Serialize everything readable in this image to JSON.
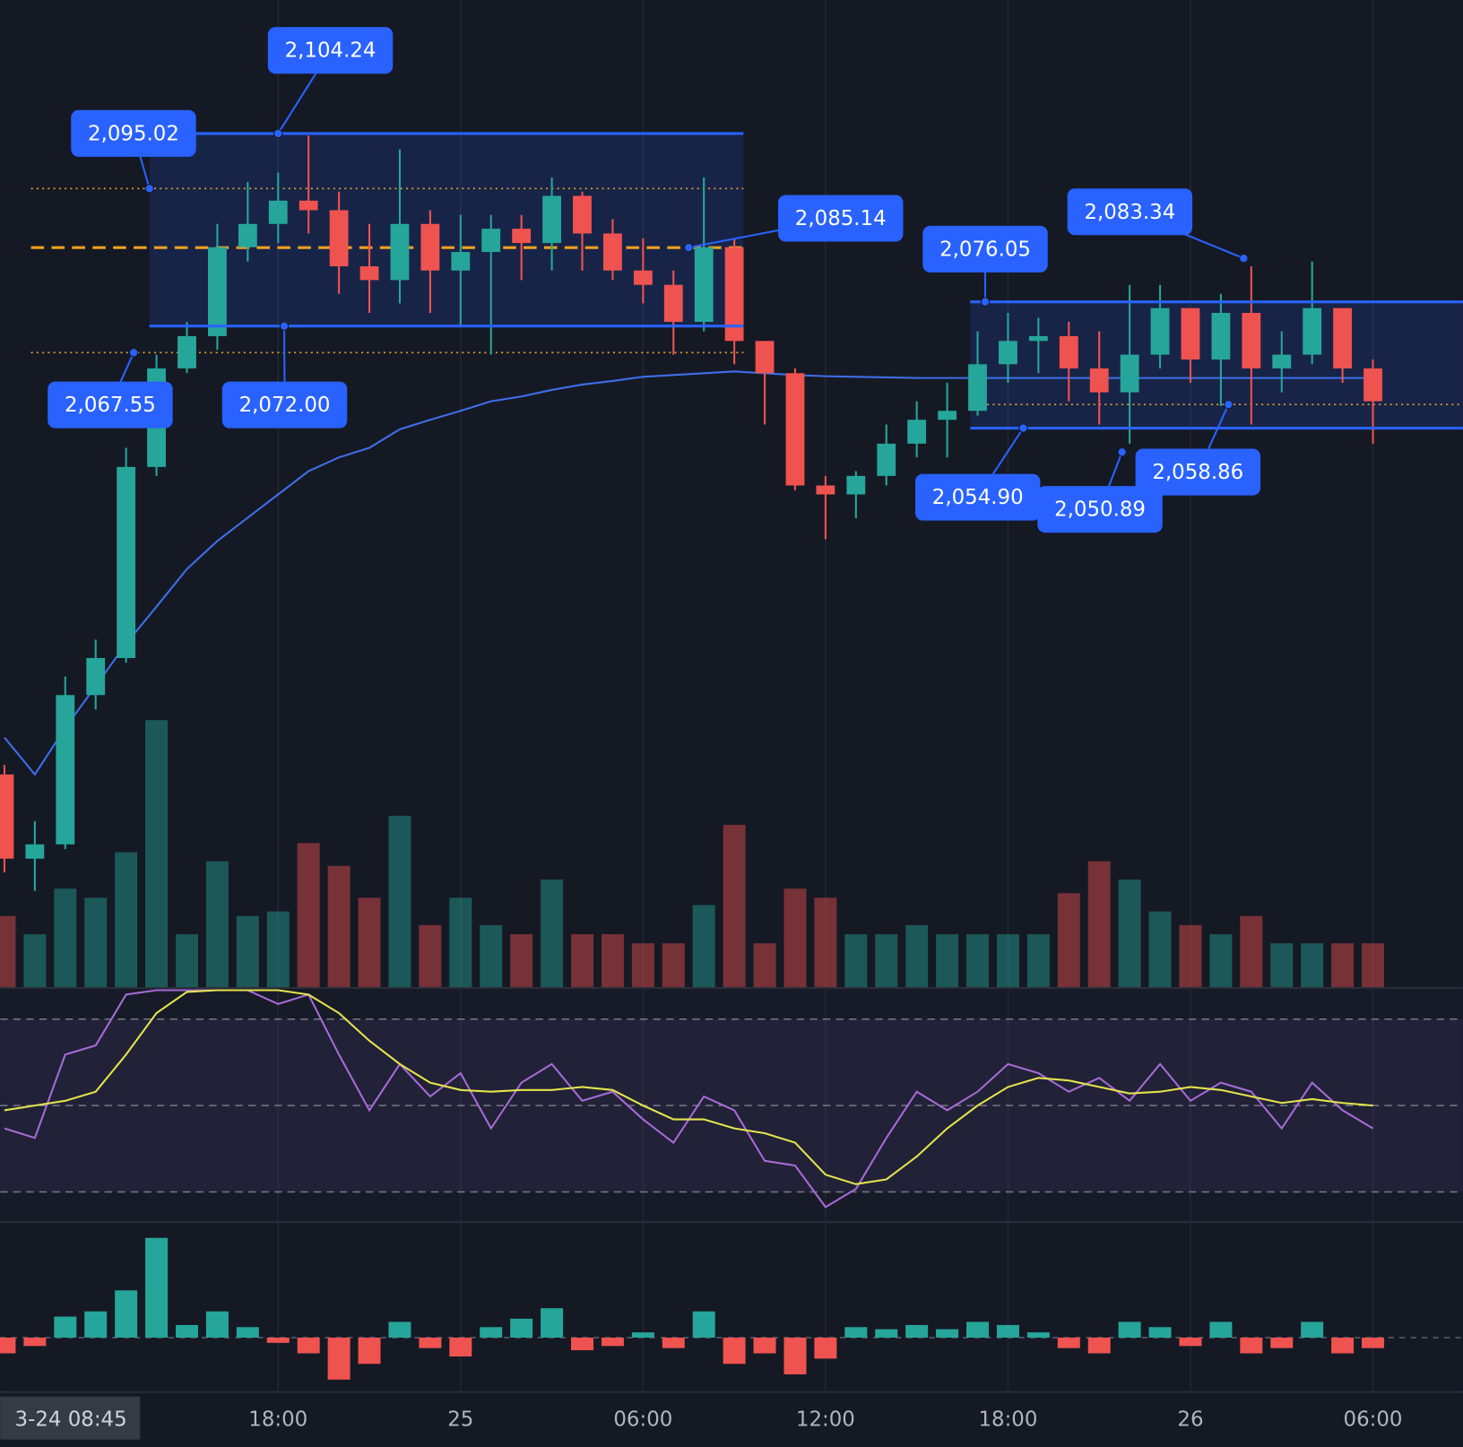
{
  "chart_data": [
    {
      "type": "bar",
      "color_by": "candle",
      "up_color": "rgba(38,166,154,0.45)",
      "down_color": "rgba(239,83,80,0.45)",
      "values": [
        78,
        58,
        108,
        98,
        148,
        293,
        58,
        138,
        78,
        83,
        158,
        133,
        98,
        188,
        68,
        98,
        68,
        58,
        118,
        58,
        58,
        48,
        48,
        90,
        178,
        48,
        108,
        98,
        58,
        58,
        68,
        58,
        58,
        58,
        58,
        103,
        138,
        118,
        83,
        68,
        58,
        78,
        48,
        48,
        48,
        48
      ],
      "ylim": [
        0,
        300
      ]
    },
    {
      "type": "candlestick",
      "up_color": "#26a69a",
      "down_color": "#ef5350",
      "categories": [
        null,
        null,
        null,
        null,
        null,
        null,
        null,
        null,
        null,
        "18:00",
        null,
        null,
        null,
        null,
        null,
        "25",
        null,
        null,
        null,
        null,
        null,
        "06:00",
        null,
        null,
        null,
        null,
        null,
        "12:00",
        null,
        null,
        null,
        null,
        null,
        "18:00",
        null,
        null,
        null,
        null,
        null,
        "26",
        null,
        null,
        null,
        null,
        null,
        "06:00"
      ],
      "open": [
        1996.9,
        1982.8,
        1985.2,
        2010.2,
        2016.4,
        2048.4,
        2064.9,
        2070.3,
        2085.2,
        2089.1,
        2093.0,
        2091.4,
        2082.0,
        2079.7,
        2089.1,
        2081.3,
        2084.4,
        2088.3,
        2085.9,
        2093.8,
        2087.5,
        2081.3,
        2078.9,
        2072.7,
        2085.2,
        2069.5,
        2064.1,
        2045.3,
        2043.8,
        2046.9,
        2052.3,
        2056.3,
        2057.8,
        2065.6,
        2069.5,
        2070.3,
        2064.9,
        2060.9,
        2067.2,
        2075.0,
        2066.4,
        2074.2,
        2064.9,
        2067.2,
        2075.0,
        2064.9
      ],
      "high": [
        1998.5,
        1989.1,
        2013.3,
        2019.5,
        2051.6,
        2067.2,
        2072.7,
        2089.1,
        2096.1,
        2097.7,
        2103.9,
        2094.5,
        2089.1,
        2101.6,
        2091.4,
        2090.6,
        2090.6,
        2090.6,
        2096.9,
        2094.5,
        2089.9,
        2086.7,
        2081.3,
        2096.9,
        2086.7,
        2069.5,
        2064.9,
        2046.9,
        2047.7,
        2055.5,
        2059.4,
        2062.5,
        2071.1,
        2074.2,
        2073.4,
        2072.7,
        2071.1,
        2078.9,
        2078.9,
        2075.0,
        2077.4,
        2082.0,
        2071.1,
        2082.8,
        2075.0,
        2066.4
      ],
      "low": [
        1980.5,
        1977.4,
        1984.4,
        2007.8,
        2015.6,
        2046.9,
        2064.1,
        2068.0,
        2082.8,
        2085.9,
        2087.5,
        2077.4,
        2074.2,
        2075.8,
        2074.2,
        2071.9,
        2067.2,
        2079.7,
        2081.3,
        2081.3,
        2079.7,
        2075.8,
        2067.2,
        2071.1,
        2065.6,
        2055.5,
        2044.5,
        2036.3,
        2039.8,
        2045.3,
        2050.0,
        2050.0,
        2057.0,
        2062.5,
        2064.1,
        2059.4,
        2055.5,
        2052.3,
        2064.9,
        2062.5,
        2058.6,
        2055.5,
        2060.9,
        2065.6,
        2062.5,
        2052.3
      ],
      "close": [
        1982.8,
        1985.2,
        2010.2,
        2016.4,
        2048.4,
        2064.9,
        2070.3,
        2085.2,
        2089.1,
        2093.0,
        2091.4,
        2082.0,
        2079.7,
        2089.1,
        2081.3,
        2084.4,
        2088.3,
        2085.9,
        2093.8,
        2087.5,
        2081.3,
        2078.9,
        2072.7,
        2085.2,
        2069.5,
        2064.1,
        2045.3,
        2043.8,
        2046.9,
        2052.3,
        2056.3,
        2057.8,
        2065.6,
        2069.5,
        2070.3,
        2064.9,
        2060.9,
        2067.2,
        2075.0,
        2066.4,
        2074.2,
        2064.9,
        2067.2,
        2075.0,
        2064.9,
        2059.4
      ],
      "vwap": [
        2003.1,
        1996.9,
        2004.7,
        2011.7,
        2018.8,
        2025.0,
        2031.3,
        2036.0,
        2039.9,
        2043.8,
        2047.7,
        2050.0,
        2051.6,
        2054.7,
        2056.3,
        2057.8,
        2059.4,
        2060.2,
        2061.3,
        2062.2,
        2062.8,
        2063.5,
        2063.8,
        2064.1,
        2064.4,
        2064.1,
        2063.8,
        2063.6,
        2063.5,
        2063.4,
        2063.3,
        2063.3,
        2063.3,
        2063.3,
        2063.3,
        2063.3,
        2063.3,
        2063.3,
        2063.3,
        2063.3,
        2063.3,
        2063.3,
        2063.3,
        2063.3,
        2063.3,
        2063.3
      ],
      "vwap_color": "#3d6fe8",
      "ylim": [
        1961.3,
        2126.6
      ],
      "range_spans": [
        [
          4.77,
          24.3
        ],
        [
          31.76,
          47.96
        ]
      ],
      "annotations": [
        {
          "label": "2,104.24",
          "value": 2104.24,
          "x": 9.0
        },
        {
          "label": "2,095.02",
          "value": 2095.02,
          "x": 4.77
        },
        {
          "label": "2,067.55",
          "value": 2067.55,
          "x": 4.25
        },
        {
          "label": "2,072.00",
          "value": 2072.0,
          "x": 9.2
        },
        {
          "label": "2,085.14",
          "value": 2085.14,
          "x": 22.5
        },
        {
          "label": "2,076.05",
          "value": 2076.05,
          "x": 32.25
        },
        {
          "label": "2,083.34",
          "value": 2083.34,
          "x": 40.75
        },
        {
          "label": "2,054.90",
          "value": 2054.9,
          "x": 33.5
        },
        {
          "label": "2,050.89",
          "value": 2050.89,
          "x": 36.75
        },
        {
          "label": "2,058.86",
          "value": 2058.86,
          "x": 40.25
        }
      ],
      "crosshair_label": "3-24  08:45"
    },
    {
      "type": "line",
      "ylim": [
        23,
        77
      ],
      "levels": [
        70,
        50,
        30
      ],
      "series": [
        {
          "color": "#a66ad6",
          "values": [
            44.7,
            42.5,
            61.8,
            63.9,
            75.7,
            76.7,
            76.7,
            76.7,
            76.7,
            73.5,
            75.7,
            61.8,
            48.9,
            59.6,
            52.1,
            57.5,
            44.7,
            55.3,
            59.6,
            51.1,
            53.2,
            46.8,
            41.4,
            52.1,
            48.9,
            37.2,
            36.1,
            26.5,
            30.7,
            42.5,
            53.2,
            48.9,
            53.2,
            59.6,
            57.5,
            53.2,
            56.4,
            51.1,
            59.6,
            51.1,
            55.3,
            53.2,
            44.7,
            55.3,
            48.9,
            44.7
          ]
        },
        {
          "color": "#e3e34d",
          "values": [
            48.9,
            50,
            51.1,
            53.2,
            61.8,
            71.4,
            76.3,
            76.7,
            76.7,
            76.7,
            75.7,
            71.4,
            65.0,
            59.6,
            55.3,
            53.6,
            53.2,
            53.6,
            53.6,
            54.3,
            53.6,
            50,
            46.8,
            46.8,
            44.7,
            43.6,
            41.4,
            34.0,
            31.8,
            32.9,
            38.2,
            44.7,
            50,
            54.3,
            56.4,
            55.8,
            54.3,
            52.8,
            53.2,
            54.3,
            53.6,
            52.1,
            50.6,
            51.5,
            50.6,
            50
          ]
        }
      ]
    },
    {
      "type": "bar",
      "color_by": "sign",
      "up_color": "#26a69a",
      "down_color": "#ef5350",
      "values": [
        -15,
        -8,
        20,
        25,
        45,
        95,
        12,
        25,
        10,
        -5,
        -15,
        -40,
        -25,
        15,
        -10,
        -18,
        10,
        18,
        28,
        -12,
        -8,
        5,
        -10,
        25,
        -25,
        -15,
        -35,
        -20,
        10,
        8,
        12,
        8,
        15,
        12,
        5,
        -10,
        -15,
        15,
        10,
        -8,
        15,
        -15,
        -10,
        15,
        -15,
        -10
      ],
      "ylim": [
        -50,
        110
      ]
    }
  ]
}
